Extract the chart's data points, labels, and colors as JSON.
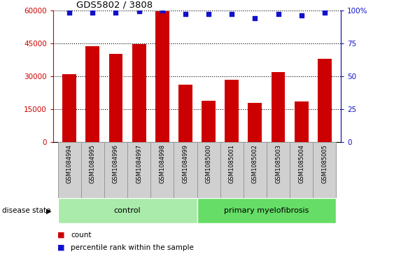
{
  "title": "GDS5802 / 3808",
  "samples": [
    "GSM1084994",
    "GSM1084995",
    "GSM1084996",
    "GSM1084997",
    "GSM1084998",
    "GSM1084999",
    "GSM1085000",
    "GSM1085001",
    "GSM1085002",
    "GSM1085003",
    "GSM1085004",
    "GSM1085005"
  ],
  "counts": [
    31000,
    43500,
    40000,
    44500,
    59500,
    26000,
    19000,
    28500,
    18000,
    32000,
    18500,
    38000
  ],
  "percentile_ranks": [
    98,
    98,
    98,
    99,
    100,
    97,
    97,
    97,
    94,
    97,
    96,
    98
  ],
  "bar_color": "#cc0000",
  "dot_color": "#1111cc",
  "ylim_left": [
    0,
    60000
  ],
  "ylim_right": [
    0,
    100
  ],
  "yticks_left": [
    0,
    15000,
    30000,
    45000,
    60000
  ],
  "yticks_right": [
    0,
    25,
    50,
    75,
    100
  ],
  "ytick_labels_left": [
    "0",
    "15000",
    "30000",
    "45000",
    "60000"
  ],
  "ytick_labels_right": [
    "0",
    "25",
    "50",
    "75",
    "100%"
  ],
  "group_labels": [
    "control",
    "primary myelofibrosis"
  ],
  "n_control": 6,
  "disease_state_label": "disease state",
  "legend_count_label": "count",
  "legend_percentile_label": "percentile rank within the sample",
  "control_color": "#aaeaaa",
  "myelofibrosis_color": "#66dd66",
  "tick_bg_color": "#d0d0d0",
  "tick_border_color": "#999999"
}
